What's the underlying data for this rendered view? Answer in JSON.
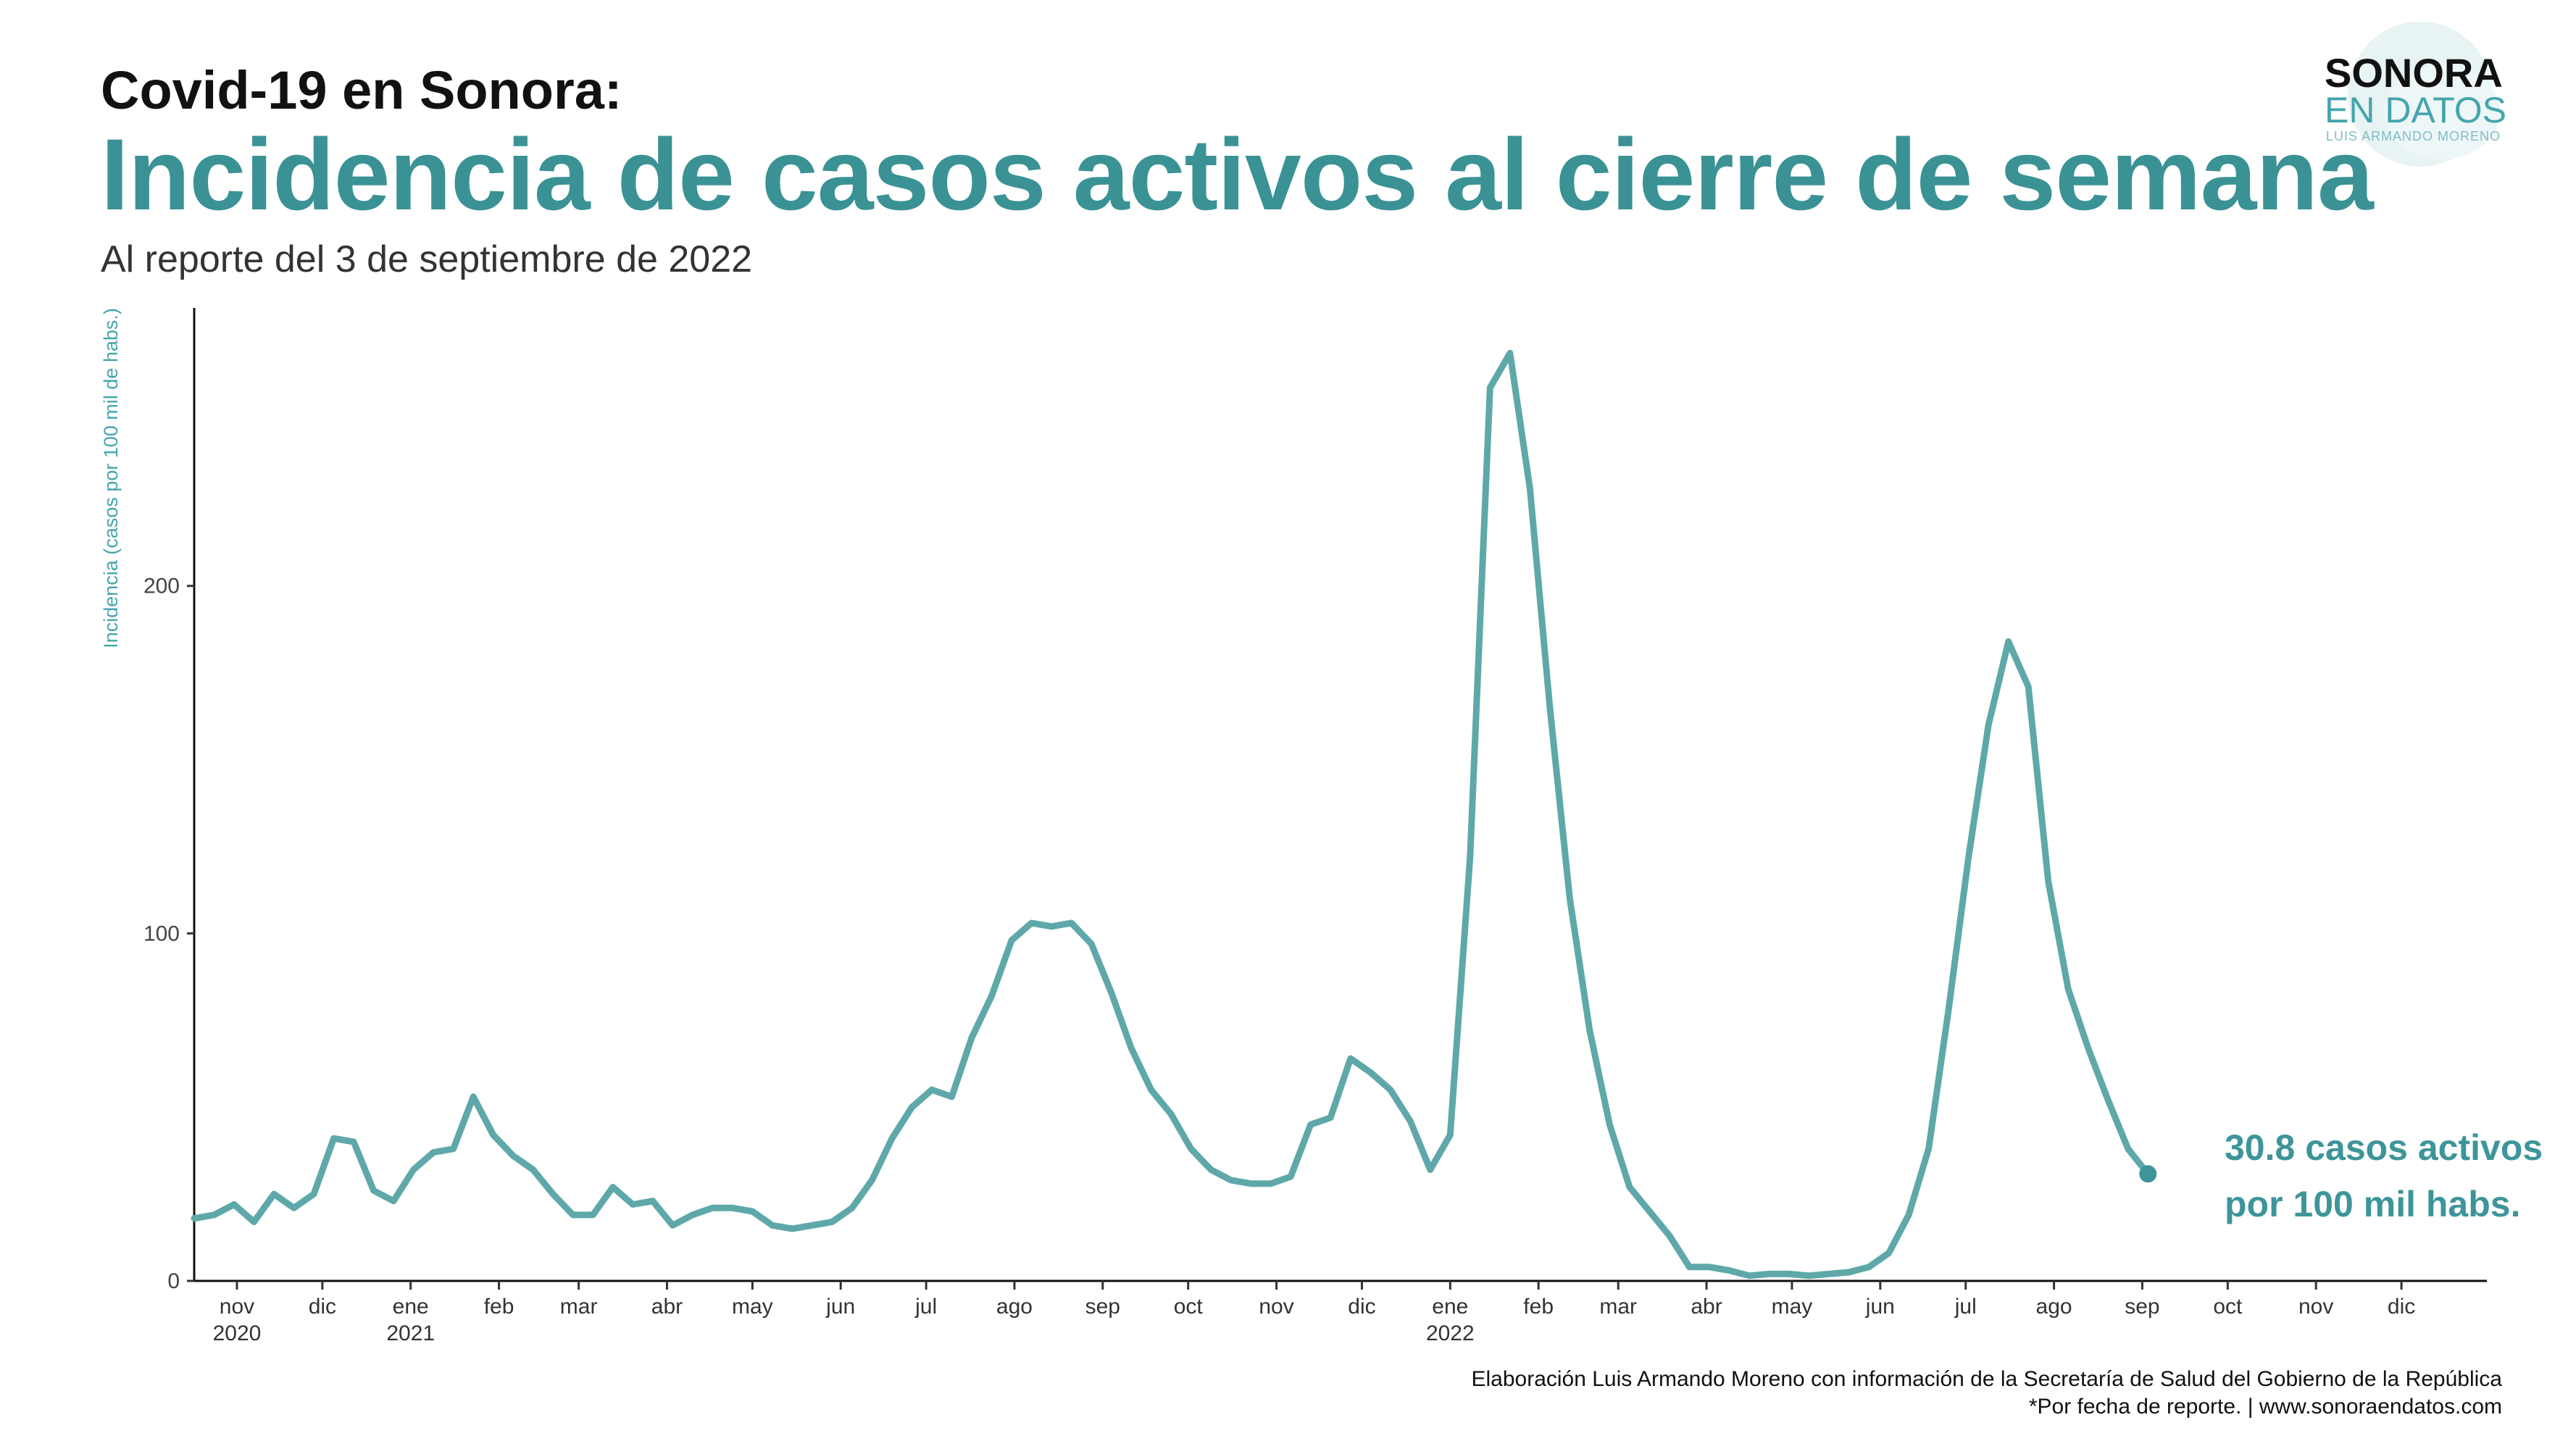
{
  "header": {
    "title_line1": "Covid-19  en Sonora:",
    "title_line2": "Incidencia de casos activos al cierre de semana",
    "subtitle": "Al reporte del 3 de septiembre de 2022"
  },
  "logo": {
    "line1": "SONORA",
    "line2": "EN DATOS",
    "line3": "LUIS ARMANDO MORENO"
  },
  "footer": {
    "line1": "Elaboración Luis Armando Moreno con información de la Secretaría de Salud del Gobierno de la República",
    "line2": "*Por fecha de reporte. | www.sonoraendatos.com"
  },
  "colors": {
    "accent": "#3d9599",
    "line": "#5fa8a9",
    "title": "#3a9294",
    "ylabel": "#45a5ad"
  },
  "chart_data": {
    "type": "line",
    "title": "Incidencia de casos activos al cierre de semana",
    "xlabel": "",
    "ylabel": "Incidencia (casos por 100 mil de habs.)",
    "x_start": "2020-10-17",
    "x_range": [
      "2020-10-17",
      "2022-12-31"
    ],
    "ylim": [
      0,
      280
    ],
    "yticks": [
      0,
      100,
      200
    ],
    "grid": false,
    "xticks": [
      {
        "date": "2020-11-01",
        "label": "nov",
        "year": "2020"
      },
      {
        "date": "2020-12-01",
        "label": "dic",
        "year": ""
      },
      {
        "date": "2021-01-01",
        "label": "ene",
        "year": "2021"
      },
      {
        "date": "2021-02-01",
        "label": "feb",
        "year": ""
      },
      {
        "date": "2021-03-01",
        "label": "mar",
        "year": ""
      },
      {
        "date": "2021-04-01",
        "label": "abr",
        "year": ""
      },
      {
        "date": "2021-05-01",
        "label": "may",
        "year": ""
      },
      {
        "date": "2021-06-01",
        "label": "jun",
        "year": ""
      },
      {
        "date": "2021-07-01",
        "label": "jul",
        "year": ""
      },
      {
        "date": "2021-08-01",
        "label": "ago",
        "year": ""
      },
      {
        "date": "2021-09-01",
        "label": "sep",
        "year": ""
      },
      {
        "date": "2021-10-01",
        "label": "oct",
        "year": ""
      },
      {
        "date": "2021-11-01",
        "label": "nov",
        "year": ""
      },
      {
        "date": "2021-12-01",
        "label": "dic",
        "year": ""
      },
      {
        "date": "2022-01-01",
        "label": "ene",
        "year": "2022"
      },
      {
        "date": "2022-02-01",
        "label": "feb",
        "year": ""
      },
      {
        "date": "2022-03-01",
        "label": "mar",
        "year": ""
      },
      {
        "date": "2022-04-01",
        "label": "abr",
        "year": ""
      },
      {
        "date": "2022-05-01",
        "label": "may",
        "year": ""
      },
      {
        "date": "2022-06-01",
        "label": "jun",
        "year": ""
      },
      {
        "date": "2022-07-01",
        "label": "jul",
        "year": ""
      },
      {
        "date": "2022-08-01",
        "label": "ago",
        "year": ""
      },
      {
        "date": "2022-09-01",
        "label": "sep",
        "year": ""
      },
      {
        "date": "2022-10-01",
        "label": "oct",
        "year": ""
      },
      {
        "date": "2022-11-01",
        "label": "nov",
        "year": ""
      },
      {
        "date": "2022-12-01",
        "label": "dic",
        "year": ""
      }
    ],
    "series": [
      {
        "name": "Incidencia",
        "points": [
          [
            "2020-10-17",
            18
          ],
          [
            "2020-10-24",
            19
          ],
          [
            "2020-10-31",
            22
          ],
          [
            "2020-11-07",
            17
          ],
          [
            "2020-11-14",
            25
          ],
          [
            "2020-11-21",
            21
          ],
          [
            "2020-11-28",
            25
          ],
          [
            "2020-12-05",
            41
          ],
          [
            "2020-12-12",
            40
          ],
          [
            "2020-12-19",
            26
          ],
          [
            "2020-12-26",
            23
          ],
          [
            "2021-01-02",
            32
          ],
          [
            "2021-01-09",
            37
          ],
          [
            "2021-01-16",
            38
          ],
          [
            "2021-01-23",
            53
          ],
          [
            "2021-01-30",
            42
          ],
          [
            "2021-02-06",
            36
          ],
          [
            "2021-02-13",
            32
          ],
          [
            "2021-02-20",
            25
          ],
          [
            "2021-02-27",
            19
          ],
          [
            "2021-03-06",
            19
          ],
          [
            "2021-03-13",
            27
          ],
          [
            "2021-03-20",
            22
          ],
          [
            "2021-03-27",
            23
          ],
          [
            "2021-04-03",
            16
          ],
          [
            "2021-04-10",
            19
          ],
          [
            "2021-04-17",
            21
          ],
          [
            "2021-04-24",
            21
          ],
          [
            "2021-05-01",
            20
          ],
          [
            "2021-05-08",
            16
          ],
          [
            "2021-05-15",
            15
          ],
          [
            "2021-05-22",
            16
          ],
          [
            "2021-05-29",
            17
          ],
          [
            "2021-06-05",
            21
          ],
          [
            "2021-06-12",
            29
          ],
          [
            "2021-06-19",
            41
          ],
          [
            "2021-06-26",
            50
          ],
          [
            "2021-07-03",
            55
          ],
          [
            "2021-07-10",
            53
          ],
          [
            "2021-07-17",
            70
          ],
          [
            "2021-07-24",
            82
          ],
          [
            "2021-07-31",
            98
          ],
          [
            "2021-08-07",
            103
          ],
          [
            "2021-08-14",
            102
          ],
          [
            "2021-08-21",
            103
          ],
          [
            "2021-08-28",
            97
          ],
          [
            "2021-09-04",
            83
          ],
          [
            "2021-09-11",
            67
          ],
          [
            "2021-09-18",
            55
          ],
          [
            "2021-09-25",
            48
          ],
          [
            "2021-10-02",
            38
          ],
          [
            "2021-10-09",
            32
          ],
          [
            "2021-10-16",
            29
          ],
          [
            "2021-10-23",
            28
          ],
          [
            "2021-10-30",
            28
          ],
          [
            "2021-11-06",
            30
          ],
          [
            "2021-11-13",
            45
          ],
          [
            "2021-11-20",
            47
          ],
          [
            "2021-11-27",
            64
          ],
          [
            "2021-12-04",
            60
          ],
          [
            "2021-12-11",
            55
          ],
          [
            "2021-12-18",
            46
          ],
          [
            "2021-12-25",
            32
          ],
          [
            "2022-01-01",
            42
          ],
          [
            "2022-01-08",
            122
          ],
          [
            "2022-01-15",
            257
          ],
          [
            "2022-01-22",
            267
          ],
          [
            "2022-01-29",
            228
          ],
          [
            "2022-02-05",
            165
          ],
          [
            "2022-02-12",
            110
          ],
          [
            "2022-02-19",
            72
          ],
          [
            "2022-02-26",
            45
          ],
          [
            "2022-03-05",
            27
          ],
          [
            "2022-03-12",
            20
          ],
          [
            "2022-03-19",
            13
          ],
          [
            "2022-03-26",
            4
          ],
          [
            "2022-04-02",
            4
          ],
          [
            "2022-04-09",
            3
          ],
          [
            "2022-04-16",
            1.5
          ],
          [
            "2022-04-23",
            2
          ],
          [
            "2022-04-30",
            2
          ],
          [
            "2022-05-07",
            1.5
          ],
          [
            "2022-05-14",
            2
          ],
          [
            "2022-05-21",
            2.5
          ],
          [
            "2022-05-28",
            4
          ],
          [
            "2022-06-04",
            8
          ],
          [
            "2022-06-11",
            19
          ],
          [
            "2022-06-18",
            38
          ],
          [
            "2022-06-25",
            78
          ],
          [
            "2022-07-02",
            122
          ],
          [
            "2022-07-09",
            160
          ],
          [
            "2022-07-16",
            184
          ],
          [
            "2022-07-23",
            171
          ],
          [
            "2022-07-30",
            115
          ],
          [
            "2022-08-06",
            84
          ],
          [
            "2022-08-13",
            67
          ],
          [
            "2022-08-20",
            52
          ],
          [
            "2022-08-27",
            38
          ],
          [
            "2022-09-03",
            30.8
          ]
        ]
      }
    ],
    "annotation": {
      "line1": "30.8 casos activos",
      "line2": "por 100 mil habs.",
      "value": 30.8,
      "date": "2022-09-03"
    }
  }
}
